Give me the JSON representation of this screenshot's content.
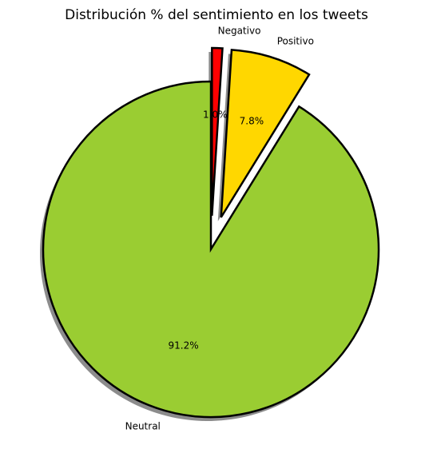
{
  "chart_data": {
    "type": "pie",
    "title": "Distribución % del sentimiento en los tweets",
    "start_angle_deg": 90,
    "direction": "clockwise",
    "shadow": true,
    "edgecolor": "#000000",
    "slices": [
      {
        "label": "Negativo",
        "value": 1.0,
        "pct_label": "1.0%",
        "color": "#ff0000",
        "explode": 0.2
      },
      {
        "label": "Positivo",
        "value": 7.8,
        "pct_label": "7.8%",
        "color": "#ffd700",
        "explode": 0.2
      },
      {
        "label": "Neutral",
        "value": 91.2,
        "pct_label": "91.2%",
        "color": "#9acd32",
        "explode": 0.0
      }
    ]
  }
}
